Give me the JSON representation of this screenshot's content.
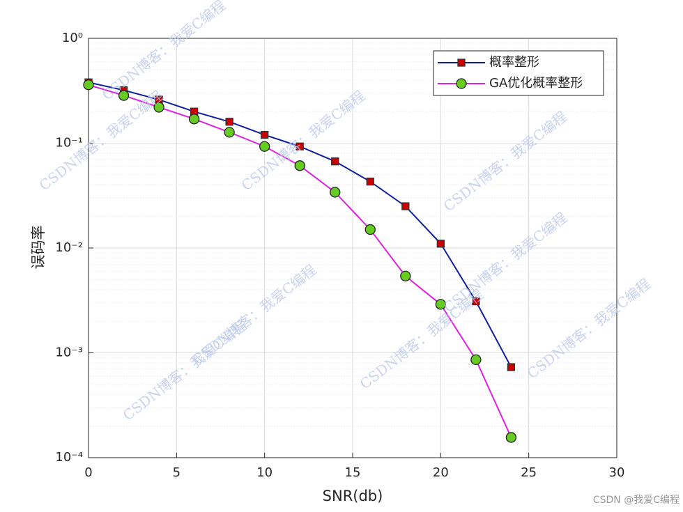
{
  "chart_data": {
    "type": "line",
    "xlabel": "SNR(db)",
    "ylabel": "误码率",
    "x": [
      0,
      2,
      4,
      6,
      8,
      10,
      12,
      14,
      16,
      18,
      20,
      22,
      24
    ],
    "series": [
      {
        "name": "概率整形",
        "color": "#0f1fa0",
        "marker": "square",
        "marker_color": "#cc0000",
        "values": [
          0.38,
          0.32,
          0.26,
          0.2,
          0.16,
          0.12,
          0.093,
          0.067,
          0.043,
          0.025,
          0.011,
          0.0031,
          0.00073
        ]
      },
      {
        "name": "GA优化概率整形",
        "color": "#e020e0",
        "marker": "circle",
        "marker_color": "#66cc22",
        "values": [
          0.36,
          0.285,
          0.22,
          0.17,
          0.127,
          0.093,
          0.061,
          0.034,
          0.015,
          0.0054,
          0.0029,
          0.00086,
          0.000156
        ]
      }
    ],
    "xlim": [
      0,
      30
    ],
    "xticks": [
      0,
      5,
      10,
      15,
      20,
      25,
      30
    ],
    "ylim": [
      0.0001,
      1
    ],
    "ylog": true,
    "yticks": [
      {
        "value": 0.0001,
        "label": "10⁻⁴"
      },
      {
        "value": 0.001,
        "label": "10⁻³"
      },
      {
        "value": 0.01,
        "label": "10⁻²"
      },
      {
        "value": 0.1,
        "label": "10⁻¹"
      },
      {
        "value": 1,
        "label": "10⁰"
      }
    ],
    "grid": true,
    "minor_grid": true,
    "legend": "northeast",
    "watermark": "CSDN博客：我爱C编程",
    "footer": "CSDN @我爱C编程"
  }
}
